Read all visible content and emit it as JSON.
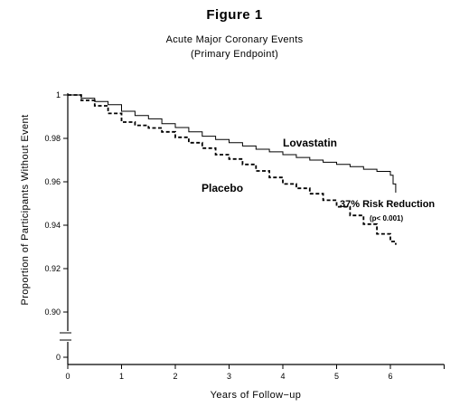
{
  "figure": {
    "title": "Figure 1",
    "subtitle_line1": "Acute Major Coronary Events",
    "subtitle_line2": "(Primary Endpoint)"
  },
  "chart_data": {
    "type": "line",
    "xlabel": "Years of Follow−up",
    "ylabel": "Proportion of Participants Without Event",
    "xlim": [
      0,
      7
    ],
    "ylim": [
      0.88,
      1.0
    ],
    "axis_break": true,
    "x_ticks": [
      0,
      1,
      2,
      3,
      4,
      5,
      6
    ],
    "y_ticks": [
      {
        "value": 1.0,
        "label": "1"
      },
      {
        "value": 0.98,
        "label": "0.98"
      },
      {
        "value": 0.96,
        "label": "0.96"
      },
      {
        "value": 0.94,
        "label": "0.94"
      },
      {
        "value": 0.92,
        "label": "0.92"
      },
      {
        "value": 0.9,
        "label": "0.90"
      },
      {
        "value": 0.0,
        "label": "0"
      }
    ],
    "series": [
      {
        "name": "Lovastatin",
        "style": "solid",
        "x": [
          0,
          0.25,
          0.5,
          0.75,
          1.0,
          1.25,
          1.5,
          1.75,
          2.0,
          2.25,
          2.5,
          2.75,
          3.0,
          3.25,
          3.5,
          3.75,
          4.0,
          4.25,
          4.5,
          4.75,
          5.0,
          5.25,
          5.5,
          5.75,
          6.0,
          6.05,
          6.1
        ],
        "y": [
          1.0,
          0.9985,
          0.997,
          0.9955,
          0.9925,
          0.9905,
          0.989,
          0.9868,
          0.985,
          0.983,
          0.981,
          0.9795,
          0.978,
          0.9765,
          0.975,
          0.9738,
          0.9725,
          0.9712,
          0.97,
          0.969,
          0.968,
          0.967,
          0.9658,
          0.9648,
          0.963,
          0.959,
          0.955
        ]
      },
      {
        "name": "Placebo",
        "style": "dashed",
        "x": [
          0,
          0.25,
          0.5,
          0.75,
          1.0,
          1.25,
          1.5,
          1.75,
          2.0,
          2.25,
          2.5,
          2.75,
          3.0,
          3.25,
          3.5,
          3.75,
          4.0,
          4.25,
          4.5,
          4.75,
          5.0,
          5.25,
          5.5,
          5.75,
          6.0,
          6.1
        ],
        "y": [
          1.0,
          0.9975,
          0.995,
          0.9915,
          0.9875,
          0.986,
          0.9848,
          0.983,
          0.9805,
          0.978,
          0.9755,
          0.9725,
          0.9705,
          0.968,
          0.965,
          0.962,
          0.959,
          0.957,
          0.9545,
          0.9515,
          0.9485,
          0.9445,
          0.9405,
          0.936,
          0.9325,
          0.931
        ]
      }
    ],
    "annotations": [
      {
        "text": "Lovastatin",
        "near": "lovastatin curve"
      },
      {
        "text": "Placebo",
        "near": "placebo curve"
      },
      {
        "text": "37% Risk Reduction",
        "near": "curve ends"
      },
      {
        "text": "(p< 0.001)",
        "near": "curve ends"
      }
    ]
  }
}
